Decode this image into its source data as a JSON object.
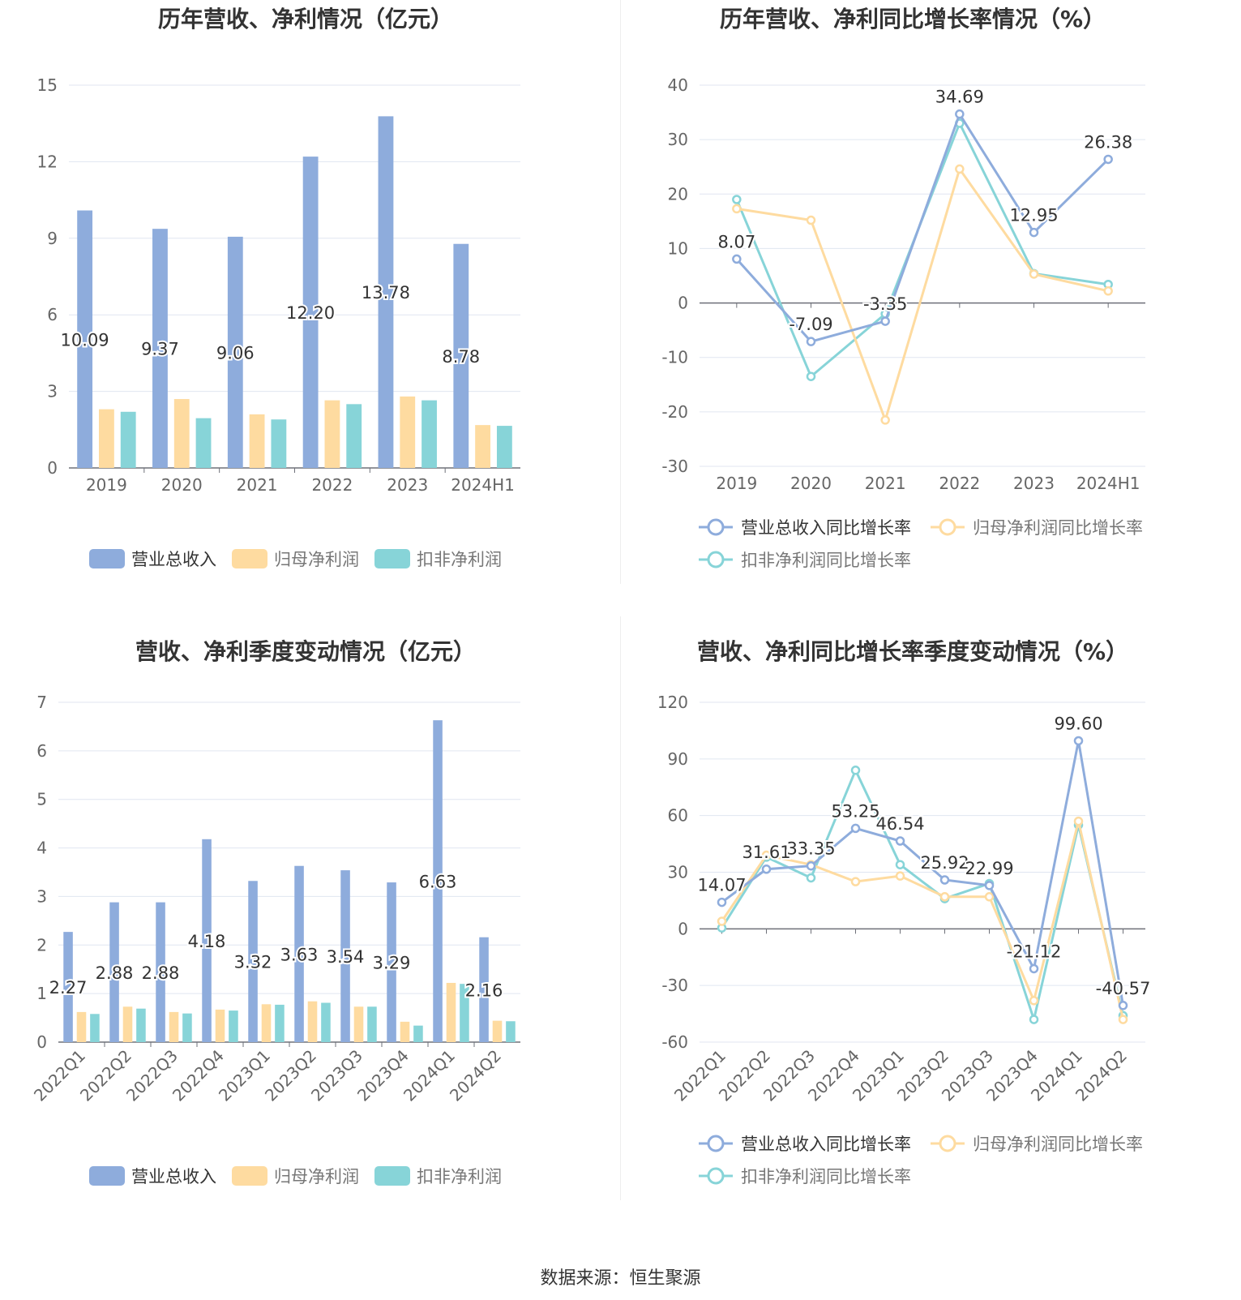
{
  "source": "数据来源：恒生聚源",
  "colors": {
    "revenue": "#8eacdc",
    "net_profit": "#fedba0",
    "deducted_profit": "#87d4d8",
    "axis": "#666666",
    "grid": "#e0e6f1",
    "text": "#333333"
  },
  "chart_data": [
    {
      "type": "bar",
      "title": "历年营收、净利情况（亿元）",
      "categories": [
        "2019",
        "2020",
        "2021",
        "2022",
        "2023",
        "2024H1"
      ],
      "yticks": [
        "0",
        "3",
        "6",
        "9",
        "12",
        "15"
      ],
      "ylim": [
        0,
        15
      ],
      "series": [
        {
          "name": "营业总收入",
          "values": [
            10.09,
            9.37,
            9.06,
            12.2,
            13.78,
            8.78
          ],
          "labels": [
            "10.09",
            "9.37",
            "9.06",
            "12.20",
            "13.78",
            "8.78"
          ]
        },
        {
          "name": "归母净利润",
          "values": [
            2.3,
            2.7,
            2.1,
            2.65,
            2.8,
            1.68
          ]
        },
        {
          "name": "扣非净利润",
          "values": [
            2.2,
            1.95,
            1.9,
            2.5,
            2.65,
            1.65
          ]
        }
      ],
      "legend": "bottom"
    },
    {
      "type": "line",
      "title": "历年营收、净利同比增长率情况（%）",
      "categories": [
        "2019",
        "2020",
        "2021",
        "2022",
        "2023",
        "2024H1"
      ],
      "yticks": [
        "-30",
        "-20",
        "-10",
        "0",
        "10",
        "20",
        "30",
        "40"
      ],
      "ylim": [
        -30,
        40
      ],
      "series": [
        {
          "name": "营业总收入同比增长率",
          "values": [
            8.07,
            -7.09,
            -3.35,
            34.69,
            12.95,
            26.38
          ],
          "labels": [
            "8.07",
            "-7.09",
            "-3.35",
            "34.69",
            "12.95",
            "26.38"
          ]
        },
        {
          "name": "归母净利润同比增长率",
          "values": [
            17.3,
            15.2,
            -21.5,
            24.6,
            5.3,
            2.2
          ]
        },
        {
          "name": "扣非净利润同比增长率",
          "values": [
            19,
            -13.5,
            -2,
            33,
            5.4,
            3.4
          ]
        }
      ],
      "legend": "bottom"
    },
    {
      "type": "bar",
      "title": "营收、净利季度变动情况（亿元）",
      "categories": [
        "2022Q1",
        "2022Q2",
        "2022Q3",
        "2022Q4",
        "2023Q1",
        "2023Q2",
        "2023Q3",
        "2023Q4",
        "2024Q1",
        "2024Q2"
      ],
      "yticks": [
        "0",
        "1",
        "2",
        "3",
        "4",
        "5",
        "6",
        "7"
      ],
      "ylim": [
        0,
        7
      ],
      "series": [
        {
          "name": "营业总收入",
          "values": [
            2.27,
            2.88,
            2.88,
            4.18,
            3.32,
            3.63,
            3.54,
            3.29,
            6.63,
            2.16
          ],
          "labels": [
            "2.27",
            "2.88",
            "2.88",
            "4.18",
            "3.32",
            "3.63",
            "3.54",
            "3.29",
            "6.63",
            "2.16"
          ]
        },
        {
          "name": "归母净利润",
          "values": [
            0.62,
            0.73,
            0.62,
            0.67,
            0.78,
            0.84,
            0.73,
            0.42,
            1.22,
            0.44
          ]
        },
        {
          "name": "扣非净利润",
          "values": [
            0.58,
            0.69,
            0.59,
            0.65,
            0.77,
            0.81,
            0.73,
            0.34,
            1.2,
            0.43
          ]
        }
      ],
      "legend": "bottom"
    },
    {
      "type": "line",
      "title": "营收、净利同比增长率季度变动情况（%）",
      "categories": [
        "2022Q1",
        "2022Q2",
        "2022Q3",
        "2022Q4",
        "2023Q1",
        "2023Q2",
        "2023Q3",
        "2023Q4",
        "2024Q1",
        "2024Q2"
      ],
      "yticks": [
        "-60",
        "-30",
        "0",
        "30",
        "60",
        "90",
        "120"
      ],
      "ylim": [
        -60,
        120
      ],
      "series": [
        {
          "name": "营业总收入同比增长率",
          "values": [
            14.07,
            31.61,
            33.35,
            53.25,
            46.54,
            25.92,
            22.99,
            -21.12,
            99.6,
            -40.57
          ],
          "labels": [
            "14.07",
            "31.61",
            "33.35",
            "53.25",
            "46.54",
            "25.92",
            "22.99",
            "-21.12",
            "99.60",
            "-40.57"
          ]
        },
        {
          "name": "归母净利润同比增长率",
          "values": [
            4,
            39,
            34,
            25,
            28,
            17,
            17,
            -38,
            57,
            -48
          ]
        },
        {
          "name": "扣非净利润同比增长率",
          "values": [
            0.5,
            38,
            27,
            84,
            34,
            16,
            24,
            -48,
            55,
            -46
          ]
        }
      ],
      "legend": "bottom"
    }
  ]
}
